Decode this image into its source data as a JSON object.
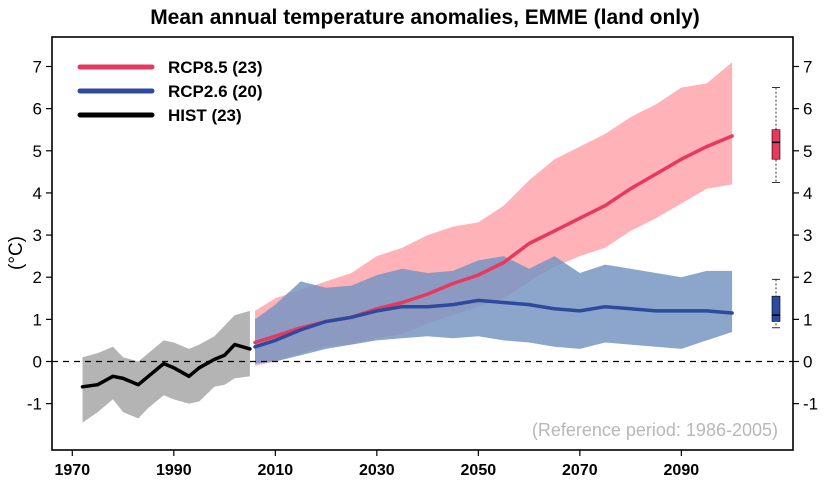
{
  "chart_data": {
    "type": "line",
    "title": "Mean annual temperature anomalies, EMME (land only)",
    "ylabel": "(°C)",
    "xlabel": "",
    "xlim": [
      1966,
      2112
    ],
    "ylim": [
      -2.1,
      7.7
    ],
    "xticks": [
      1970,
      1990,
      2010,
      2030,
      2050,
      2070,
      2090
    ],
    "yticks": [
      -1,
      0,
      1,
      2,
      3,
      4,
      5,
      6,
      7
    ],
    "ytick_labels": [
      "-1",
      "0",
      "1",
      "2",
      "3",
      "4",
      "5",
      "6",
      "7"
    ],
    "annotation": "(Reference period: 1986-2005)",
    "reference_line_y": 0,
    "grid": false,
    "legend_position": "top-left",
    "series": [
      {
        "name": "RCP8.5 (23)",
        "color": "#e8385f",
        "band_color": "#ffb3b8",
        "x": [
          2006,
          2010,
          2015,
          2020,
          2025,
          2030,
          2035,
          2040,
          2045,
          2050,
          2055,
          2060,
          2065,
          2070,
          2075,
          2080,
          2085,
          2090,
          2095,
          2100
        ],
        "mean": [
          0.45,
          0.6,
          0.8,
          0.95,
          1.05,
          1.25,
          1.4,
          1.6,
          1.85,
          2.05,
          2.35,
          2.8,
          3.1,
          3.4,
          3.7,
          4.1,
          4.45,
          4.8,
          5.1,
          5.35
        ],
        "lower": [
          -0.1,
          0.0,
          0.2,
          0.35,
          0.4,
          0.55,
          0.65,
          0.9,
          1.1,
          1.3,
          1.5,
          1.9,
          2.25,
          2.5,
          2.7,
          3.1,
          3.4,
          3.75,
          4.1,
          4.2
        ],
        "upper": [
          1.2,
          1.5,
          1.7,
          1.9,
          2.1,
          2.5,
          2.7,
          3.0,
          3.2,
          3.3,
          3.7,
          4.3,
          4.8,
          5.1,
          5.4,
          5.8,
          6.1,
          6.5,
          6.6,
          7.1
        ]
      },
      {
        "name": "RCP2.6 (20)",
        "color": "#2e4a9e",
        "band_color": "#7895c2",
        "x": [
          2006,
          2010,
          2015,
          2020,
          2025,
          2030,
          2035,
          2040,
          2045,
          2050,
          2055,
          2060,
          2065,
          2070,
          2075,
          2080,
          2085,
          2090,
          2095,
          2100
        ],
        "mean": [
          0.35,
          0.5,
          0.75,
          0.95,
          1.05,
          1.2,
          1.3,
          1.3,
          1.35,
          1.45,
          1.4,
          1.35,
          1.25,
          1.2,
          1.3,
          1.25,
          1.2,
          1.2,
          1.2,
          1.15
        ],
        "lower": [
          -0.05,
          0.0,
          0.15,
          0.3,
          0.4,
          0.5,
          0.55,
          0.6,
          0.55,
          0.6,
          0.5,
          0.45,
          0.35,
          0.3,
          0.45,
          0.4,
          0.35,
          0.3,
          0.5,
          0.7
        ],
        "upper": [
          1.0,
          1.35,
          1.9,
          1.75,
          1.8,
          2.05,
          2.2,
          2.1,
          2.15,
          2.4,
          2.5,
          2.2,
          2.5,
          2.1,
          2.3,
          2.2,
          2.1,
          2.0,
          2.15,
          2.15
        ]
      },
      {
        "name": "HIST (23)",
        "color": "#000000",
        "band_color": "#b4b4b4",
        "x": [
          1972,
          1975,
          1978,
          1980,
          1983,
          1985,
          1988,
          1990,
          1993,
          1995,
          1998,
          2000,
          2002,
          2005
        ],
        "mean": [
          -0.6,
          -0.55,
          -0.35,
          -0.4,
          -0.55,
          -0.35,
          -0.05,
          -0.15,
          -0.35,
          -0.15,
          0.05,
          0.15,
          0.4,
          0.3
        ],
        "lower": [
          -1.45,
          -1.2,
          -0.9,
          -1.2,
          -1.35,
          -1.1,
          -0.8,
          -0.9,
          -1.0,
          -0.95,
          -0.6,
          -0.55,
          -0.4,
          -0.35
        ],
        "upper": [
          0.1,
          0.2,
          0.35,
          0.1,
          0.0,
          0.2,
          0.5,
          0.45,
          0.3,
          0.4,
          0.6,
          0.85,
          1.1,
          1.2
        ]
      }
    ],
    "boxplots": [
      {
        "name": "RCP8.5 2100",
        "color": "#e8385f",
        "min": 4.25,
        "q1": 4.8,
        "median": 5.2,
        "q3": 5.5,
        "max": 6.5
      },
      {
        "name": "RCP2.6 2100",
        "color": "#2e4a9e",
        "min": 0.8,
        "q1": 0.95,
        "median": 1.1,
        "q3": 1.55,
        "max": 1.95
      }
    ]
  }
}
